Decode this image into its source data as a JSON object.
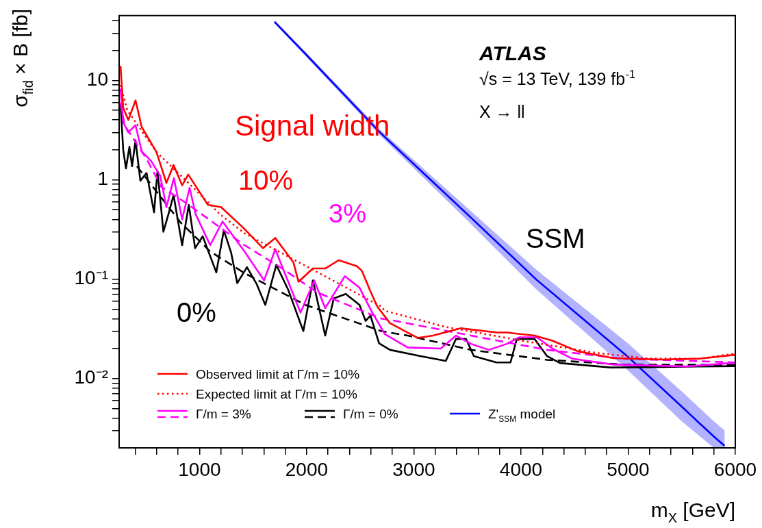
{
  "chart_data": {
    "type": "line",
    "xlabel": "m$_{X}$ [GeV]",
    "ylabel": "σ$_{fid}$ × B [fb]",
    "xlim": [
      250,
      6000
    ],
    "ylim": [
      0.002,
      45
    ],
    "log": "y",
    "marker": "none",
    "legend": "bottom left",
    "xticks": [
      {
        "value": 400,
        "label": null
      },
      {
        "value": 600,
        "label": null
      },
      {
        "value": 800,
        "label": null
      },
      1000,
      {
        "value": 1200,
        "label": null
      },
      {
        "value": 1400,
        "label": null
      },
      {
        "value": 1600,
        "label": null
      },
      {
        "value": 1800,
        "label": null
      },
      2000,
      {
        "value": 2200,
        "label": null
      },
      {
        "value": 2400,
        "label": null
      },
      {
        "value": 2600,
        "label": null
      },
      {
        "value": 2800,
        "label": null
      },
      3000,
      {
        "value": 3200,
        "label": null
      },
      {
        "value": 3400,
        "label": null
      },
      {
        "value": 3600,
        "label": null
      },
      {
        "value": 3800,
        "label": null
      },
      4000,
      {
        "value": 4200,
        "label": null
      },
      {
        "value": 4400,
        "label": null
      },
      {
        "value": 4600,
        "label": null
      },
      {
        "value": 4800,
        "label": null
      },
      5000,
      {
        "value": 5200,
        "label": null
      },
      {
        "value": 5400,
        "label": null
      },
      {
        "value": 5600,
        "label": null
      },
      {
        "value": 5800,
        "label": null
      },
      6000
    ],
    "yticks": [
      {
        "value": 0.003,
        "label": null
      },
      {
        "value": 0.004,
        "label": null
      },
      {
        "value": 0.005,
        "label": null
      },
      {
        "value": 0.006,
        "label": null
      },
      {
        "value": 0.007,
        "label": null
      },
      {
        "value": 0.008,
        "label": null
      },
      {
        "value": 0.009,
        "label": null
      },
      {
        "value": 0.01,
        "label": "10⁻²"
      },
      {
        "value": 0.02,
        "label": null
      },
      {
        "value": 0.03,
        "label": null
      },
      {
        "value": 0.04,
        "label": null
      },
      {
        "value": 0.05,
        "label": null
      },
      {
        "value": 0.06,
        "label": null
      },
      {
        "value": 0.07,
        "label": null
      },
      {
        "value": 0.08,
        "label": null
      },
      {
        "value": 0.09,
        "label": null
      },
      {
        "value": 0.1,
        "label": "10⁻¹"
      },
      {
        "value": 0.2,
        "label": null
      },
      {
        "value": 0.3,
        "label": null
      },
      {
        "value": 0.4,
        "label": null
      },
      {
        "value": 0.5,
        "label": null
      },
      {
        "value": 0.6,
        "label": null
      },
      {
        "value": 0.7,
        "label": null
      },
      {
        "value": 0.8,
        "label": null
      },
      {
        "value": 0.9,
        "label": null
      },
      1,
      {
        "value": 2,
        "label": null
      },
      {
        "value": 3,
        "label": null
      },
      {
        "value": 4,
        "label": null
      },
      {
        "value": 5,
        "label": null
      },
      {
        "value": 6,
        "label": null
      },
      {
        "value": 7,
        "label": null
      },
      {
        "value": 8,
        "label": null
      },
      {
        "value": 9,
        "label": null
      },
      10,
      {
        "value": 20,
        "label": null
      },
      {
        "value": 30,
        "label": null
      },
      {
        "value": 40,
        "label": null
      }
    ],
    "annotations": [
      "ATLAS",
      "√s = 13 TeV, 139 fb$^{-1}$",
      "X → ll",
      "Signal width",
      "10%",
      "3%",
      "0%",
      "SSM"
    ],
    "series": [
      {
        "name": "Observed limit at Γ/m = 10%",
        "color": "#ff0000",
        "line_style": "solid",
        "x": [
          263,
          288,
          336,
          403,
          461,
          599,
          691,
          758,
          838,
          895,
          1078,
          1202,
          1420,
          1592,
          1707,
          1877,
          1924,
          2058,
          2082,
          2173,
          2299,
          2470,
          2516,
          2589,
          2659,
          2778,
          3036,
          3180,
          3439,
          3771,
          3867,
          4127,
          4293,
          4529,
          4861,
          5311,
          5665,
          5994
        ],
        "values": [
          14,
          5.3,
          4.0,
          6.3,
          3.4,
          1.9,
          0.93,
          1.41,
          0.88,
          1.13,
          0.56,
          0.53,
          0.32,
          0.205,
          0.26,
          0.147,
          0.094,
          0.128,
          0.128,
          0.128,
          0.155,
          0.135,
          0.121,
          0.078,
          0.053,
          0.036,
          0.0256,
          0.027,
          0.032,
          0.029,
          0.029,
          0.027,
          0.024,
          0.0188,
          0.016,
          0.0155,
          0.0158,
          0.0173
        ]
      },
      {
        "name": "Expected limit at Γ/m = 10%",
        "color": "#ff0000",
        "line_style": "dotted",
        "x": [
          263,
          291,
          327,
          599,
          964,
          1190,
          1420,
          2103,
          2697,
          2729,
          3298,
          4007,
          4717,
          5189,
          5665,
          5994
        ],
        "values": [
          9,
          6.9,
          5.0,
          1.9,
          0.79,
          0.45,
          0.29,
          0.117,
          0.053,
          0.048,
          0.033,
          0.024,
          0.018,
          0.0159,
          0.0158,
          0.0178
        ]
      },
      {
        "name": "Γ/m = 3%",
        "color": "#ff00ff",
        "line_style": "solid",
        "x": [
          263,
          288,
          336,
          403,
          461,
          550,
          633,
          691,
          761,
          838,
          908,
          964,
          1100,
          1215,
          1295,
          1420,
          1603,
          1707,
          1943,
          2071,
          2173,
          2356,
          2493,
          2608,
          2729,
          2943,
          3251,
          3394,
          3534,
          3700,
          3867,
          3985,
          4148,
          4293,
          4480,
          4861,
          5547,
          5994
        ],
        "values": [
          8.3,
          3.8,
          3.0,
          3.55,
          1.93,
          1.54,
          1.1,
          0.53,
          1.04,
          0.4,
          0.83,
          0.45,
          0.22,
          0.38,
          0.29,
          0.19,
          0.097,
          0.2,
          0.046,
          0.097,
          0.051,
          0.107,
          0.082,
          0.047,
          0.028,
          0.0205,
          0.02,
          0.027,
          0.0223,
          0.0194,
          0.0223,
          0.026,
          0.026,
          0.02,
          0.0158,
          0.0138,
          0.0132,
          0.0144
        ]
      },
      {
        "color": "#ff00ff",
        "line_style": "dashed",
        "x": [
          263,
          301,
          506,
          644,
          870,
          1420,
          1762,
          2103,
          2697,
          2825,
          3534,
          4243,
          4953,
          5994
        ],
        "values": [
          6.0,
          3.55,
          1.62,
          0.85,
          0.59,
          0.22,
          0.13,
          0.073,
          0.04,
          0.038,
          0.027,
          0.0194,
          0.0158,
          0.0145
        ]
      },
      {
        "name": "Γ/m = 0%",
        "color": "#000000",
        "line_style": "solid",
        "x": [
          263,
          288,
          314,
          346,
          371,
          403,
          448,
          506,
          576,
          608,
          663,
          710,
          758,
          838,
          900,
          959,
          1030,
          1087,
          1157,
          1227,
          1295,
          1352,
          1443,
          1534,
          1614,
          1717,
          1828,
          1969,
          2058,
          2173,
          2253,
          2365,
          2493,
          2550,
          2595,
          2676,
          2778,
          3061,
          3298,
          3394,
          3488,
          3560,
          3771,
          3902,
          3961,
          4127,
          4243,
          4364,
          4837,
          5189,
          5994
        ],
        "values": [
          5.9,
          2.0,
          1.3,
          2.15,
          1.37,
          2.5,
          0.98,
          1.17,
          0.47,
          1.23,
          0.3,
          0.45,
          0.7,
          0.22,
          0.56,
          0.205,
          0.27,
          0.185,
          0.117,
          0.31,
          0.185,
          0.091,
          0.132,
          0.089,
          0.055,
          0.139,
          0.078,
          0.03,
          0.097,
          0.027,
          0.064,
          0.071,
          0.055,
          0.038,
          0.043,
          0.0226,
          0.0194,
          0.0168,
          0.015,
          0.025,
          0.025,
          0.0168,
          0.0145,
          0.0145,
          0.025,
          0.025,
          0.0168,
          0.0143,
          0.0129,
          0.013,
          0.0133
        ]
      },
      {
        "color": "#000000",
        "line_style": "dashed",
        "x": [
          416,
          825,
          1100,
          1420,
          1988,
          2697,
          2943,
          3534,
          4243,
          4953,
          5994
        ],
        "values": [
          1.37,
          0.37,
          0.19,
          0.115,
          0.055,
          0.03,
          0.027,
          0.0194,
          0.0154,
          0.0138,
          0.0137
        ]
      },
      {
        "name": "Z'$_{SSM}$ model",
        "color": "#0000ff",
        "line_style": "solid",
        "x": [
          1700,
          2000,
          2684,
          3500,
          4148,
          4600,
          5004,
          5500,
          5800,
          5900
        ],
        "values": [
          39,
          18,
          3.0,
          0.45,
          0.098,
          0.038,
          0.0163,
          0.0052,
          0.0026,
          0.0021
        ],
        "lower": [
          37.5,
          17.1,
          2.8,
          0.39,
          0.078,
          0.029,
          0.0119,
          0.0037,
          0.002,
          0.002
        ],
        "upper": [
          40.6,
          18.9,
          3.2,
          0.52,
          0.123,
          0.05,
          0.0223,
          0.0074,
          0.0037,
          0.003
        ]
      }
    ]
  }
}
